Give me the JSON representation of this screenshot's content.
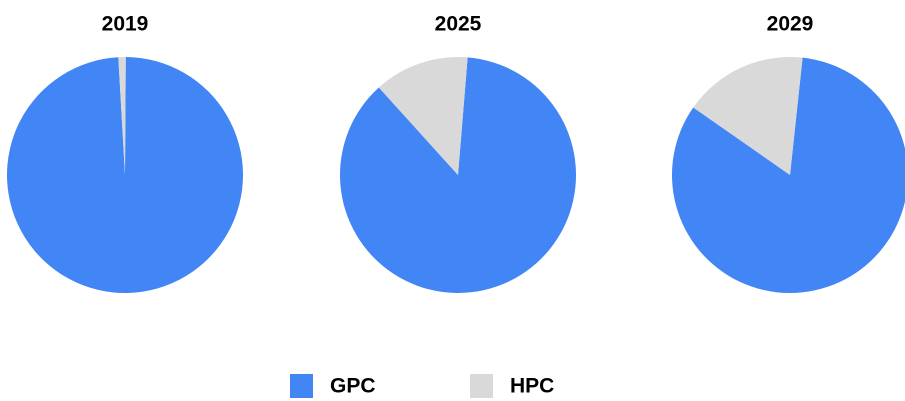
{
  "chart_data": [
    {
      "type": "pie",
      "title": "2019",
      "categories": [
        "GPC",
        "HPC"
      ],
      "values": [
        99,
        1
      ],
      "colors": [
        "#4285f4",
        "#d9d9d9"
      ]
    },
    {
      "type": "pie",
      "title": "2025",
      "categories": [
        "GPC",
        "HPC"
      ],
      "values": [
        87,
        13
      ],
      "colors": [
        "#4285f4",
        "#d9d9d9"
      ]
    },
    {
      "type": "pie",
      "title": "2029",
      "categories": [
        "GPC",
        "HPC"
      ],
      "values": [
        83,
        17
      ],
      "colors": [
        "#4285f4",
        "#d9d9d9"
      ]
    }
  ]
}
